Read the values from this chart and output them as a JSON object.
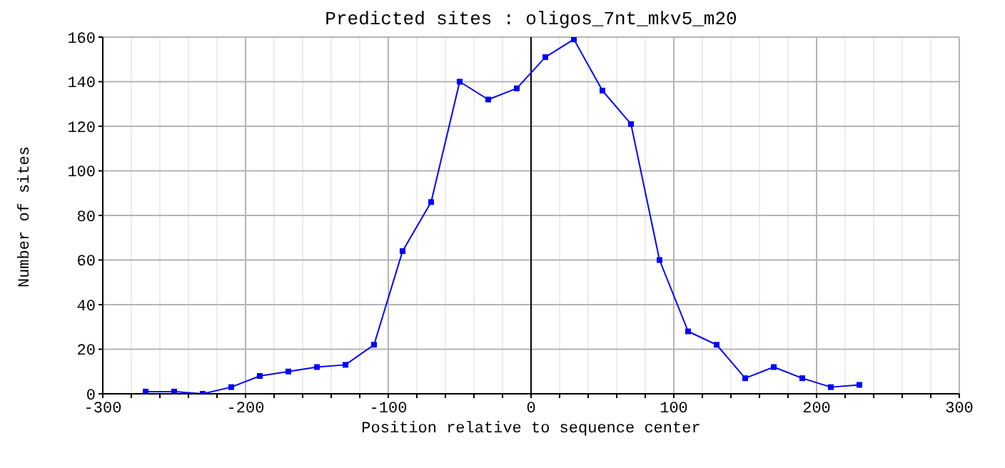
{
  "chart_data": {
    "type": "line",
    "title": "Predicted sites : oligos_7nt_mkv5_m20",
    "xlabel": "Position relative to sequence center",
    "ylabel": "Number of sites",
    "x": [
      -270,
      -250,
      -230,
      -210,
      -190,
      -170,
      -150,
      -130,
      -110,
      -90,
      -70,
      -50,
      -30,
      -10,
      10,
      30,
      50,
      70,
      90,
      110,
      130,
      150,
      170,
      190,
      210,
      230
    ],
    "series": [
      {
        "color": "#0000ff",
        "values": [
          1,
          1,
          0,
          3,
          8,
          10,
          12,
          13,
          22,
          64,
          86,
          140,
          132,
          137,
          151,
          159,
          136,
          121,
          60,
          28,
          22,
          7,
          12,
          7,
          3,
          4
        ]
      }
    ],
    "xlim": [
      -300,
      300
    ],
    "xticks": [
      -300,
      {
        "value": -280,
        "label": null
      },
      {
        "value": -260,
        "label": null
      },
      {
        "value": -240,
        "label": null
      },
      {
        "value": -220,
        "label": null
      },
      -200,
      {
        "value": -180,
        "label": null
      },
      {
        "value": -160,
        "label": null
      },
      {
        "value": -140,
        "label": null
      },
      {
        "value": -120,
        "label": null
      },
      -100,
      {
        "value": -80,
        "label": null
      },
      {
        "value": -60,
        "label": null
      },
      {
        "value": -40,
        "label": null
      },
      {
        "value": -20,
        "label": null
      },
      0,
      {
        "value": 20,
        "label": null
      },
      {
        "value": 40,
        "label": null
      },
      {
        "value": 60,
        "label": null
      },
      {
        "value": 80,
        "label": null
      },
      100,
      {
        "value": 120,
        "label": null
      },
      {
        "value": 140,
        "label": null
      },
      {
        "value": 160,
        "label": null
      },
      {
        "value": 180,
        "label": null
      },
      200,
      {
        "value": 220,
        "label": null
      },
      {
        "value": 240,
        "label": null
      },
      {
        "value": 260,
        "label": null
      },
      {
        "value": 280,
        "label": null
      },
      300
    ],
    "ylim": [
      0,
      160
    ],
    "yticks": [
      0,
      20,
      40,
      60,
      80,
      100,
      120,
      140,
      160
    ],
    "grid": true,
    "marker": "square",
    "line_style": "solid",
    "ref_lines": [
      {
        "axis": "x",
        "value": 0,
        "color": "#000000"
      }
    ]
  }
}
